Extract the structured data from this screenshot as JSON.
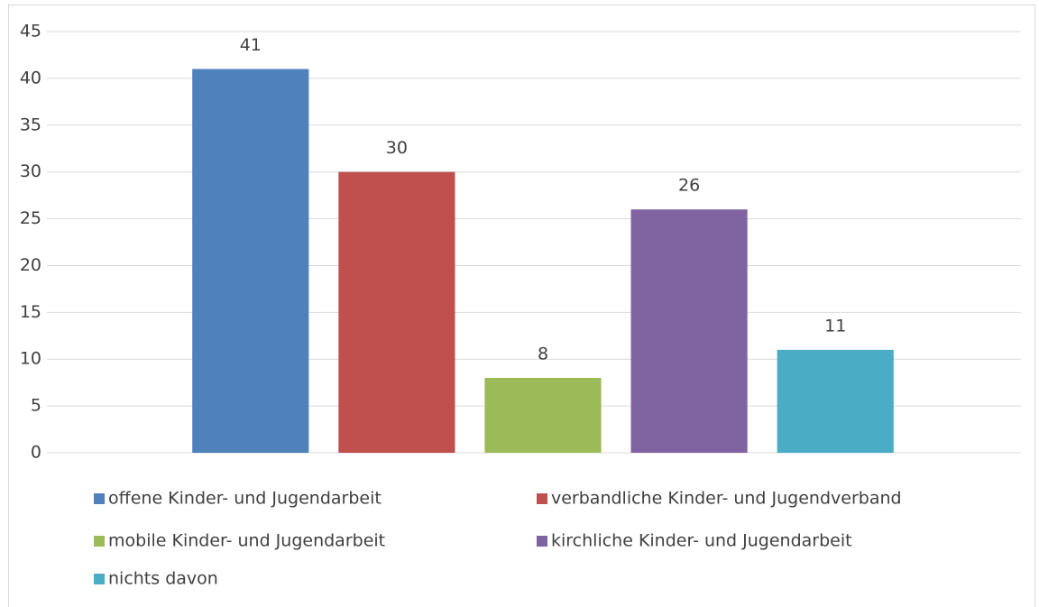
{
  "chart_data": {
    "type": "bar",
    "categories": [
      null
    ],
    "series": [
      {
        "name": "offene Kinder- und Jugendarbeit",
        "color": "#4f81bd",
        "values": [
          41
        ]
      },
      {
        "name": "verbandliche Kinder- und Jugendverband",
        "color": "#c0504d",
        "values": [
          30
        ]
      },
      {
        "name": "mobile Kinder- und Jugendarbeit",
        "color": "#9bbb59",
        "values": [
          8
        ]
      },
      {
        "name": "kirchliche Kinder- und Jugendarbeit",
        "color": "#8064a2",
        "values": [
          26
        ]
      },
      {
        "name": "nichts davon",
        "color": "#4bacc6",
        "values": [
          11
        ]
      }
    ],
    "ylim": [
      0,
      45
    ],
    "yticks": [
      0,
      5,
      10,
      15,
      20,
      25,
      30,
      35,
      40,
      45
    ],
    "grid": true,
    "legend": "bottom"
  }
}
